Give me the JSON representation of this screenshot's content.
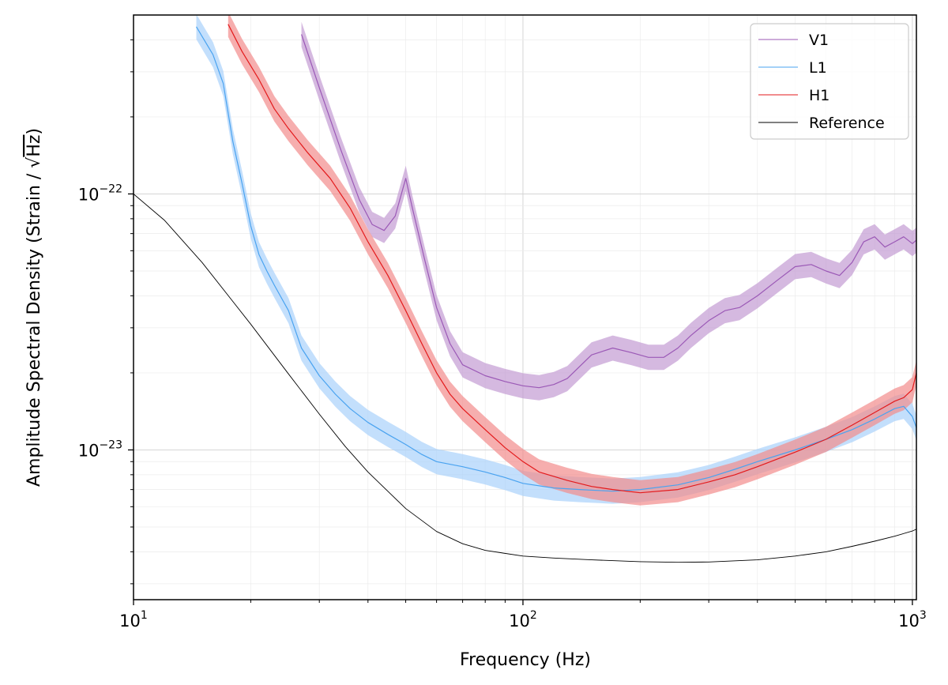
{
  "chart_data": {
    "type": "line",
    "xlabel": "Frequency (Hz)",
    "ylabel_prefix": "Amplitude Spectral Density (Strain / ",
    "ylabel_radical": "Hz",
    "ylabel_suffix": ")",
    "x_scale": "log",
    "y_scale": "log",
    "xlim": [
      10,
      1024
    ],
    "ylim": [
      2.6e-24,
      5e-22
    ],
    "grid": true,
    "legend_position": "top-right",
    "x_ticks": [
      {
        "value": 10,
        "base": "10",
        "exp": "1"
      },
      {
        "value": 100,
        "base": "10",
        "exp": "2"
      },
      {
        "value": 1000,
        "base": "10",
        "exp": "3"
      }
    ],
    "y_ticks": [
      {
        "value": 1e-23,
        "base": "10",
        "exp": "−23"
      },
      {
        "value": 1e-22,
        "base": "10",
        "exp": "−22"
      }
    ],
    "series": [
      {
        "name": "V1",
        "color": "#9b59b6",
        "band_color": "#c39bd3",
        "x": [
          27,
          30,
          34,
          38,
          41,
          44,
          47,
          50,
          52,
          56,
          60,
          65,
          70,
          80,
          90,
          100,
          110,
          120,
          130,
          150,
          170,
          190,
          210,
          230,
          250,
          270,
          300,
          330,
          360,
          400,
          450,
          500,
          550,
          600,
          650,
          700,
          750,
          800,
          850,
          900,
          950,
          1000,
          1024
        ],
        "y": [
          4.2e-22,
          2.6e-22,
          1.5e-22,
          9.5e-23,
          7.6e-23,
          7.2e-23,
          8.2e-23,
          1.15e-22,
          8.8e-23,
          5.5e-23,
          3.6e-23,
          2.6e-23,
          2.15e-23,
          1.95e-23,
          1.85e-23,
          1.78e-23,
          1.75e-23,
          1.8e-23,
          1.9e-23,
          2.35e-23,
          2.5e-23,
          2.4e-23,
          2.3e-23,
          2.3e-23,
          2.5e-23,
          2.8e-23,
          3.2e-23,
          3.5e-23,
          3.6e-23,
          4e-23,
          4.6e-23,
          5.2e-23,
          5.3e-23,
          5e-23,
          4.8e-23,
          5.4e-23,
          6.5e-23,
          6.8e-23,
          6.2e-23,
          6.5e-23,
          6.8e-23,
          6.4e-23,
          6.6e-23
        ]
      },
      {
        "name": "L1",
        "color": "#4aa3f0",
        "band_color": "#a9d2fb",
        "x": [
          14.5,
          16,
          17,
          18,
          19,
          20,
          21,
          22,
          23,
          25,
          27,
          30,
          33,
          36,
          40,
          45,
          50,
          55,
          60,
          70,
          80,
          90,
          100,
          120,
          140,
          170,
          200,
          250,
          300,
          350,
          400,
          500,
          600,
          700,
          800,
          900,
          950,
          1000,
          1024
        ],
        "y": [
          4.5e-22,
          3.5e-22,
          2.7e-22,
          1.6e-22,
          1.1e-22,
          7.5e-23,
          5.8e-23,
          5e-23,
          4.4e-23,
          3.5e-23,
          2.5e-23,
          1.95e-23,
          1.65e-23,
          1.45e-23,
          1.28e-23,
          1.15e-23,
          1.05e-23,
          9.6e-24,
          9e-24,
          8.6e-24,
          8.2e-24,
          7.8e-24,
          7.4e-24,
          7.1e-24,
          7e-24,
          6.9e-24,
          7e-24,
          7.3e-24,
          7.8e-24,
          8.4e-24,
          9e-24,
          1e-23,
          1.1e-23,
          1.2e-23,
          1.32e-23,
          1.45e-23,
          1.48e-23,
          1.35e-23,
          1.22e-23
        ]
      },
      {
        "name": "H1",
        "color": "#e31a1c",
        "band_color": "#f28b8b",
        "x": [
          17.5,
          19,
          21,
          23,
          25,
          28,
          32,
          36,
          40,
          45,
          50,
          55,
          60,
          65,
          70,
          80,
          90,
          100,
          110,
          130,
          150,
          170,
          200,
          250,
          300,
          350,
          400,
          500,
          600,
          700,
          800,
          900,
          950,
          1000,
          1024
        ],
        "y": [
          4.6e-22,
          3.6e-22,
          2.8e-22,
          2.15e-22,
          1.8e-22,
          1.45e-22,
          1.15e-22,
          8.8e-23,
          6.5e-23,
          4.8e-23,
          3.5e-23,
          2.6e-23,
          2e-23,
          1.65e-23,
          1.45e-23,
          1.2e-23,
          1.02e-23,
          9e-24,
          8.2e-24,
          7.6e-24,
          7.2e-24,
          7e-24,
          6.8e-24,
          7e-24,
          7.5e-24,
          8e-24,
          8.6e-24,
          9.8e-24,
          1.1e-23,
          1.25e-23,
          1.4e-23,
          1.55e-23,
          1.6e-23,
          1.72e-23,
          2e-23
        ]
      },
      {
        "name": "Reference",
        "color": "#000000",
        "x": [
          10,
          12,
          15,
          18,
          20,
          25,
          30,
          35,
          40,
          50,
          60,
          70,
          80,
          100,
          120,
          150,
          200,
          250,
          300,
          400,
          500,
          600,
          700,
          800,
          900,
          1000,
          1024
        ],
        "y": [
          1e-22,
          7.9e-23,
          5.4e-23,
          3.8e-23,
          3.1e-23,
          1.98e-23,
          1.38e-23,
          1.03e-23,
          8.2e-24,
          5.9e-24,
          4.8e-24,
          4.3e-24,
          4.05e-24,
          3.85e-24,
          3.78e-24,
          3.72e-24,
          3.66e-24,
          3.64e-24,
          3.65e-24,
          3.72e-24,
          3.85e-24,
          4e-24,
          4.2e-24,
          4.4e-24,
          4.6e-24,
          4.82e-24,
          4.9e-24
        ]
      }
    ]
  }
}
